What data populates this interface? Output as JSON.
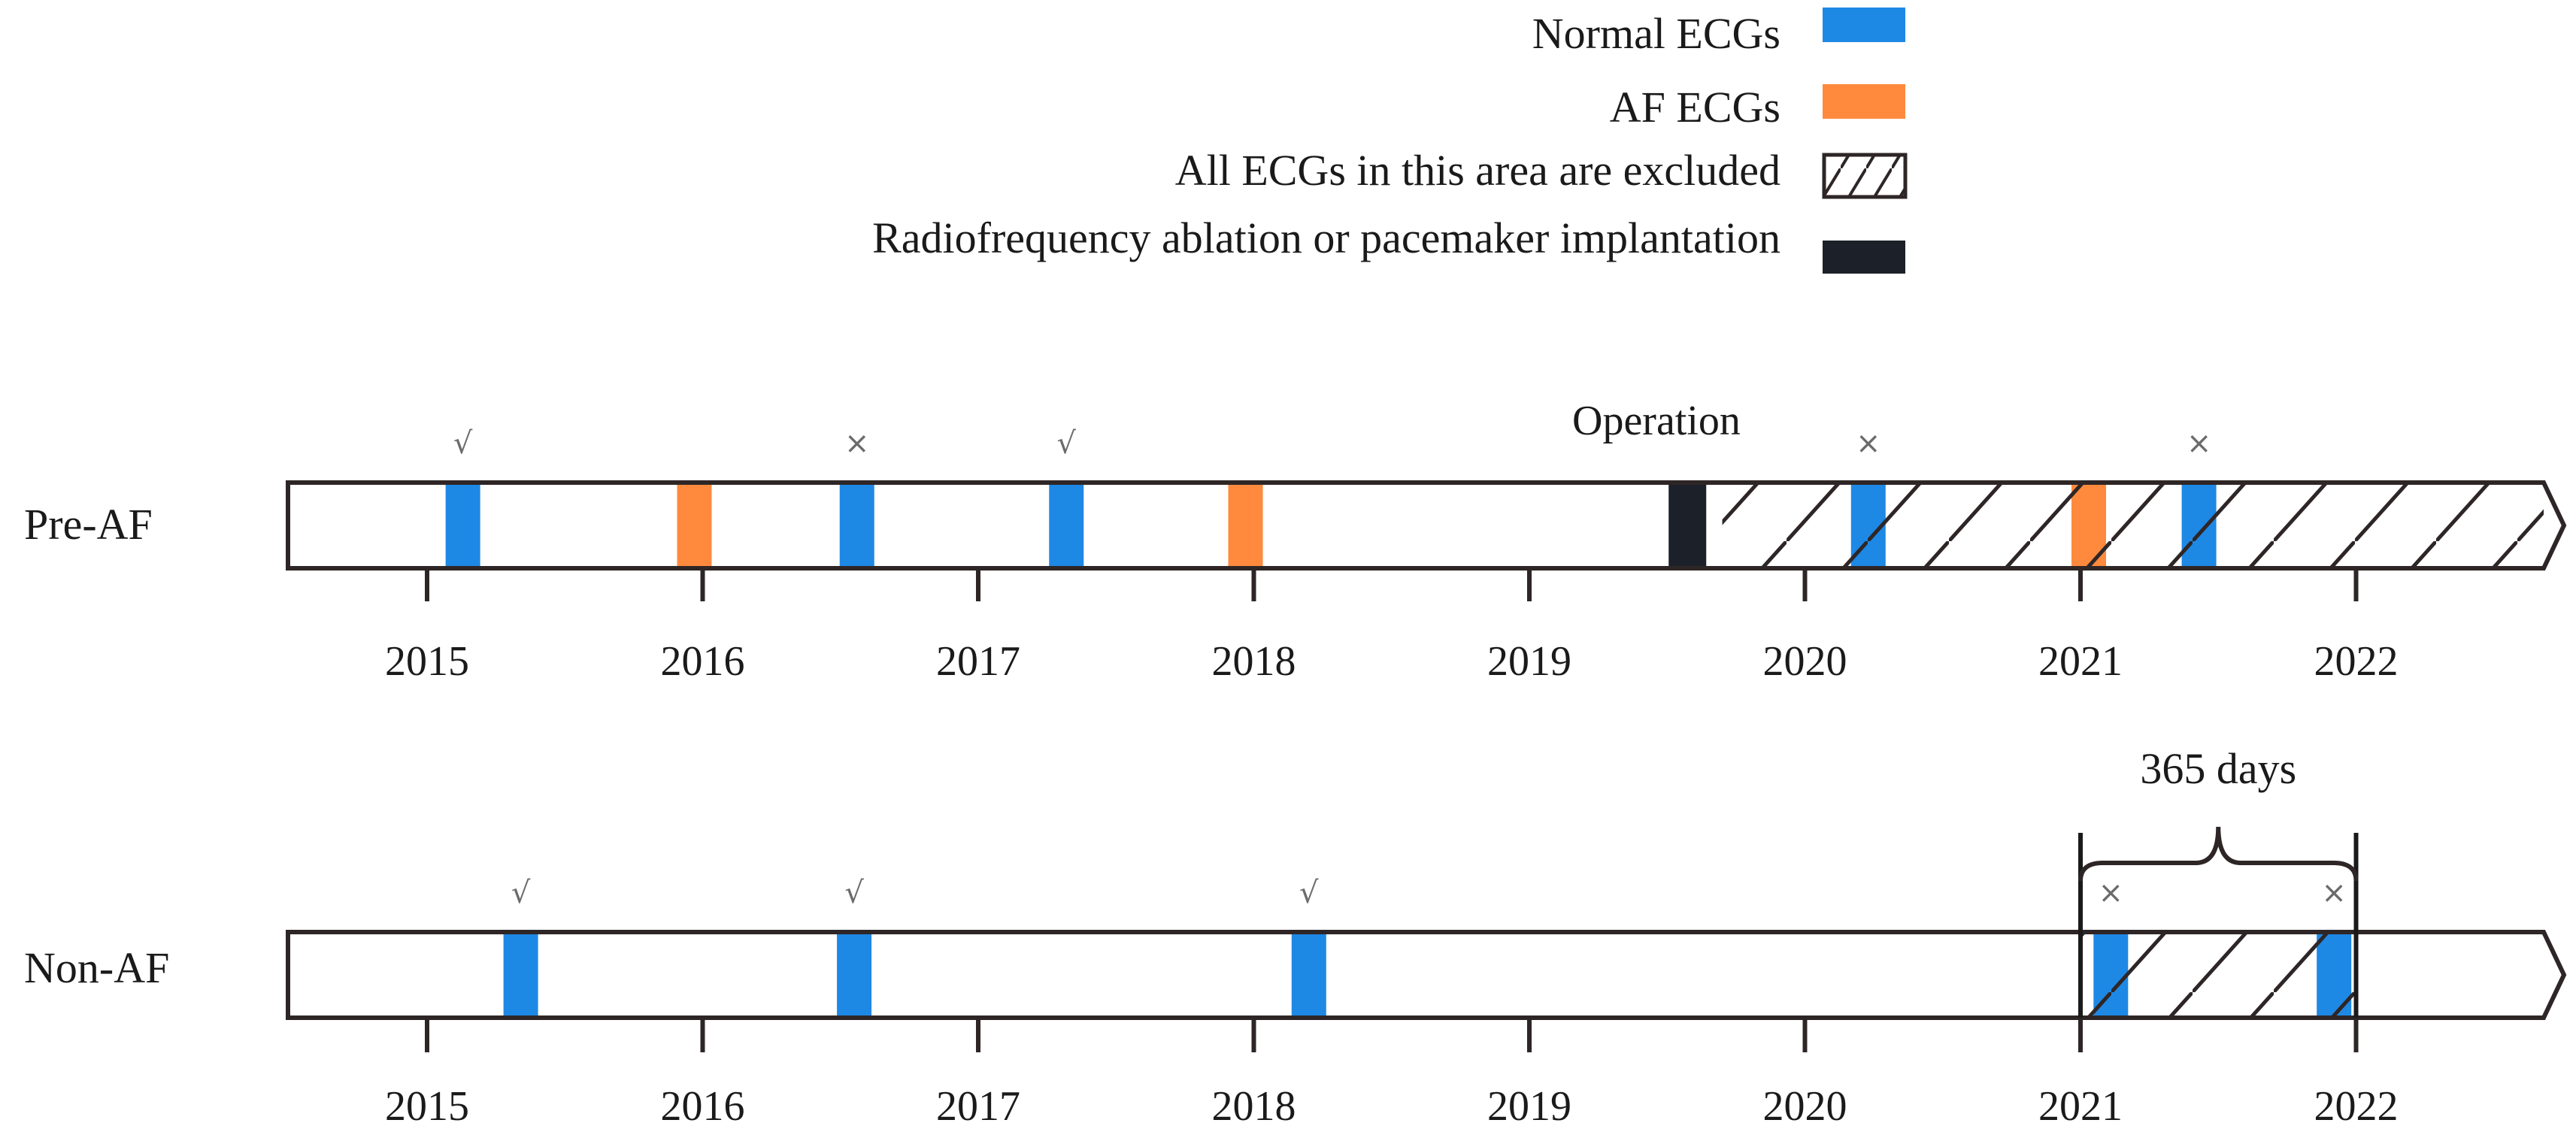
{
  "colors": {
    "normal": "#1E88E5",
    "af": "#FF8A3D",
    "operation": "#1C2028",
    "outline": "#2E2626"
  },
  "legend": {
    "items": [
      {
        "label": "Normal ECGs",
        "swatch": "normal"
      },
      {
        "label": "AF ECGs",
        "swatch": "af"
      },
      {
        "label": "All ECGs in this area are excluded",
        "swatch": "hatch"
      },
      {
        "label": "Radiofrequency ablation or pacemaker implantation",
        "swatch": "operation"
      }
    ]
  },
  "timelines": [
    {
      "label": "Pre-AF",
      "years": [
        "2015",
        "2016",
        "2017",
        "2018",
        "2019",
        "2020",
        "2021",
        "2022"
      ],
      "operation_label": "Operation",
      "operation_time": 2019.56,
      "excluded_from": 2019.7,
      "events": [
        {
          "t": 2015.13,
          "type": "normal",
          "mark": "√"
        },
        {
          "t": 2015.97,
          "type": "af",
          "mark": ""
        },
        {
          "t": 2016.56,
          "type": "normal",
          "mark": "×"
        },
        {
          "t": 2017.32,
          "type": "normal",
          "mark": "√"
        },
        {
          "t": 2017.97,
          "type": "af",
          "mark": ""
        },
        {
          "t": 2020.23,
          "type": "normal",
          "mark": "×"
        },
        {
          "t": 2021.03,
          "type": "af",
          "mark": ""
        },
        {
          "t": 2021.43,
          "type": "normal",
          "mark": "×"
        }
      ]
    },
    {
      "label": "Non-AF",
      "years": [
        "2015",
        "2016",
        "2017",
        "2018",
        "2019",
        "2020",
        "2021",
        "2022"
      ],
      "bracket_label": "365 days",
      "excluded_from": 2021.0,
      "excluded_to": 2022.0,
      "events": [
        {
          "t": 2015.34,
          "type": "normal",
          "mark": "√"
        },
        {
          "t": 2016.55,
          "type": "normal",
          "mark": "√"
        },
        {
          "t": 2018.2,
          "type": "normal",
          "mark": "√"
        },
        {
          "t": 2021.11,
          "type": "normal",
          "mark": "×"
        },
        {
          "t": 2021.92,
          "type": "normal",
          "mark": "×"
        }
      ]
    }
  ]
}
